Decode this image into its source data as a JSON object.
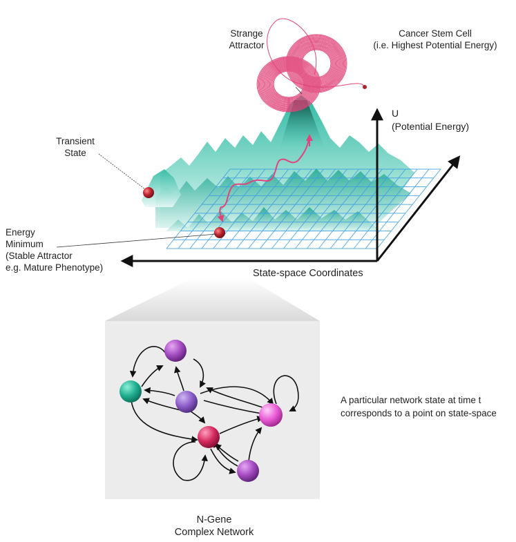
{
  "labels": {
    "strange_attractor": [
      "Strange",
      "Attractor"
    ],
    "cancer_stem_cell": [
      "Cancer Stem Cell",
      "(i.e. Highest Potential Energy)"
    ],
    "u_axis": [
      "U",
      "(Potential Energy)"
    ],
    "transient_state": [
      "Transient",
      "State"
    ],
    "energy_minimum": [
      "Energy",
      "Minimum",
      "(Stable Attractor",
      "e.g. Mature Phenotype)"
    ],
    "state_space": "State-space Coordinates",
    "network_note": [
      "A particular network state at time t",
      "corresponds to a point on state-space"
    ],
    "network_title": [
      "N-Gene",
      "Complex Network"
    ]
  },
  "colors": {
    "landscape": "#3fc2ad",
    "grid": "#3a9ee0",
    "attractor": "#e0447a",
    "ball": "#b3202a",
    "node_teal": "#1fae8f",
    "node_purple": "#a24bc0",
    "node_violet": "#8b5cc8",
    "node_crimson": "#d42a5e",
    "node_pink": "#e95bd6",
    "panel_bg": "#ececec"
  }
}
